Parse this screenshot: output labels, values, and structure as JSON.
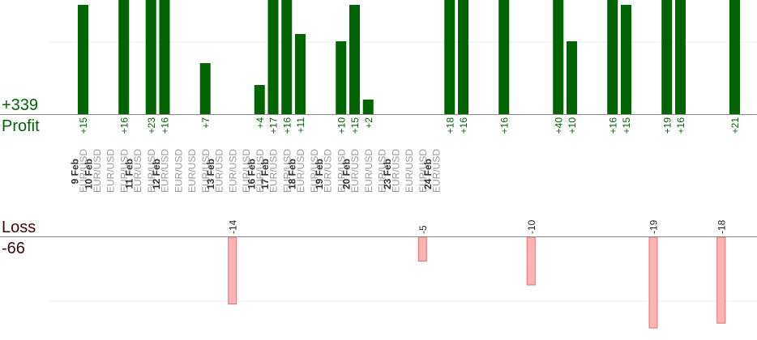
{
  "colors": {
    "profit_bar": "#006400",
    "loss_bar": "#ffb3b3",
    "loss_bar_border": "#e07070",
    "profit_text": "#006400",
    "loss_text": "#3a0a0a"
  },
  "profit": {
    "title": "Profit",
    "total": "+339"
  },
  "loss": {
    "title": "Loss",
    "total": "-66"
  },
  "chart_data": {
    "type": "bar",
    "title": "",
    "xlabel": "",
    "ylabel": "",
    "profit_ylim": [
      0,
      24
    ],
    "loss_ylim": [
      -20,
      0
    ],
    "grid": true,
    "slots": [
      {
        "day": "9 Feb",
        "symbols": [
          "EUR/USD"
        ]
      },
      {
        "day": "10 Feb",
        "symbols": [
          "EUR/USD",
          "EUR/USD",
          "EUR/USD"
        ]
      },
      {
        "day": "11 Feb",
        "symbols": [
          "EUR/USD",
          "EUR/USD"
        ]
      },
      {
        "day": "12 Feb",
        "symbols": [
          "EUR/USD",
          "EUR/USD",
          "EUR/USD",
          "EUR/USD"
        ]
      },
      {
        "day": "13 Feb",
        "symbols": [
          "EUR/USD",
          "EUR/USD",
          "EUR/USD"
        ]
      },
      {
        "day": "16 Feb",
        "symbols": [
          "EUR/USD"
        ]
      },
      {
        "day": "17 Feb",
        "symbols": [
          "EUR/USD",
          "EUR/USD"
        ]
      },
      {
        "day": "18 Feb",
        "symbols": [
          "EUR/USD",
          "EUR/USD"
        ]
      },
      {
        "day": "19 Feb",
        "symbols": [
          "EUR/USD",
          "EUR/USD"
        ]
      },
      {
        "day": "20 Feb",
        "symbols": [
          "EUR/USD",
          "EUR/USD",
          "EUR/USD"
        ]
      },
      {
        "day": "23 Feb",
        "symbols": [
          "EUR/USD",
          "EUR/USD",
          "EUR/USD"
        ]
      },
      {
        "day": "24 Feb",
        "symbols": [
          "EUR/USD"
        ]
      }
    ],
    "series": [
      {
        "kind": "profit",
        "points": [
          {
            "slot": 0,
            "value": 15,
            "label": "+15"
          },
          {
            "slot": 3,
            "value": 16,
            "label": "+16"
          },
          {
            "slot": 5,
            "value": 23,
            "label": "+23"
          },
          {
            "slot": 6,
            "value": 16,
            "label": "+16"
          },
          {
            "slot": 9,
            "value": 7,
            "label": "+7"
          },
          {
            "slot": 13,
            "value": 4,
            "label": "+4"
          },
          {
            "slot": 14,
            "value": 17,
            "label": "+17"
          },
          {
            "slot": 15,
            "value": 16,
            "label": "+16"
          },
          {
            "slot": 16,
            "value": 11,
            "label": "+11"
          },
          {
            "slot": 19,
            "value": 10,
            "label": "+10"
          },
          {
            "slot": 20,
            "value": 15,
            "label": "+15"
          },
          {
            "slot": 21,
            "value": 2,
            "label": "+2"
          },
          {
            "slot": 27,
            "value": 18,
            "label": "+18"
          },
          {
            "slot": 28,
            "value": 16,
            "label": "+16"
          },
          {
            "slot": 31,
            "value": 16,
            "label": "+16"
          },
          {
            "slot": 35,
            "value": 40,
            "label": "+40"
          },
          {
            "slot": 36,
            "value": 10,
            "label": "+10"
          },
          {
            "slot": 39,
            "value": 16,
            "label": "+16"
          },
          {
            "slot": 40,
            "value": 15,
            "label": "+15"
          },
          {
            "slot": 43,
            "value": 19,
            "label": "+19"
          },
          {
            "slot": 44,
            "value": 16,
            "label": "+16"
          },
          {
            "slot": 48,
            "value": 21,
            "label": "+21"
          }
        ]
      },
      {
        "kind": "loss",
        "points": [
          {
            "slot": 11,
            "value": -14,
            "label": "-14"
          },
          {
            "slot": 25,
            "value": -5,
            "label": "-5"
          },
          {
            "slot": 33,
            "value": -10,
            "label": "-10"
          },
          {
            "slot": 42,
            "value": -19,
            "label": "-19"
          },
          {
            "slot": 47,
            "value": -18,
            "label": "-18"
          }
        ]
      }
    ]
  }
}
